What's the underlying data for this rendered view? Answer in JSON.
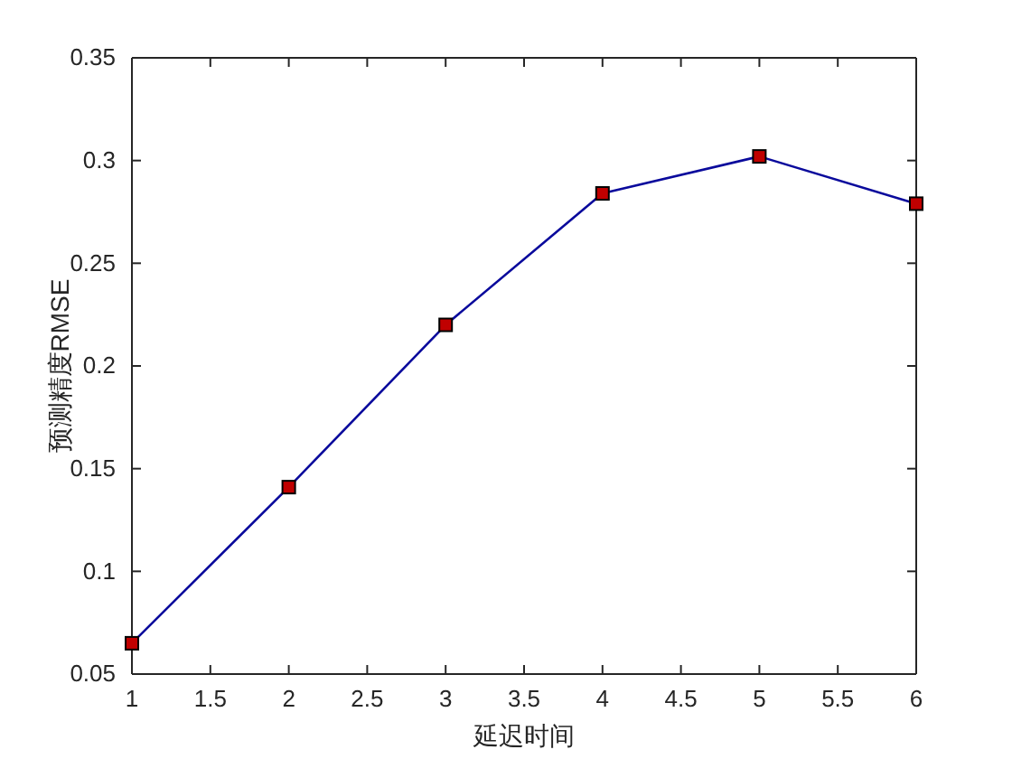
{
  "chart_data": {
    "type": "line",
    "xlabel": "延迟时间",
    "ylabel": "预测精度RMSE",
    "x": [
      1,
      2,
      3,
      4,
      5,
      6
    ],
    "series": [
      {
        "color": "#0a0a9c",
        "values": [
          0.065,
          0.141,
          0.22,
          0.284,
          0.302,
          0.279
        ]
      }
    ],
    "xlim": [
      1,
      6
    ],
    "xticks": [
      1,
      1.5,
      2,
      2.5,
      3,
      3.5,
      4,
      4.5,
      5,
      5.5,
      6
    ],
    "ylim": [
      0.05,
      0.35
    ],
    "yticks": [
      0.05,
      0.1,
      0.15,
      0.2,
      0.25,
      0.3,
      0.35
    ],
    "grid": false,
    "marker": "square",
    "line_style": "solid"
  }
}
